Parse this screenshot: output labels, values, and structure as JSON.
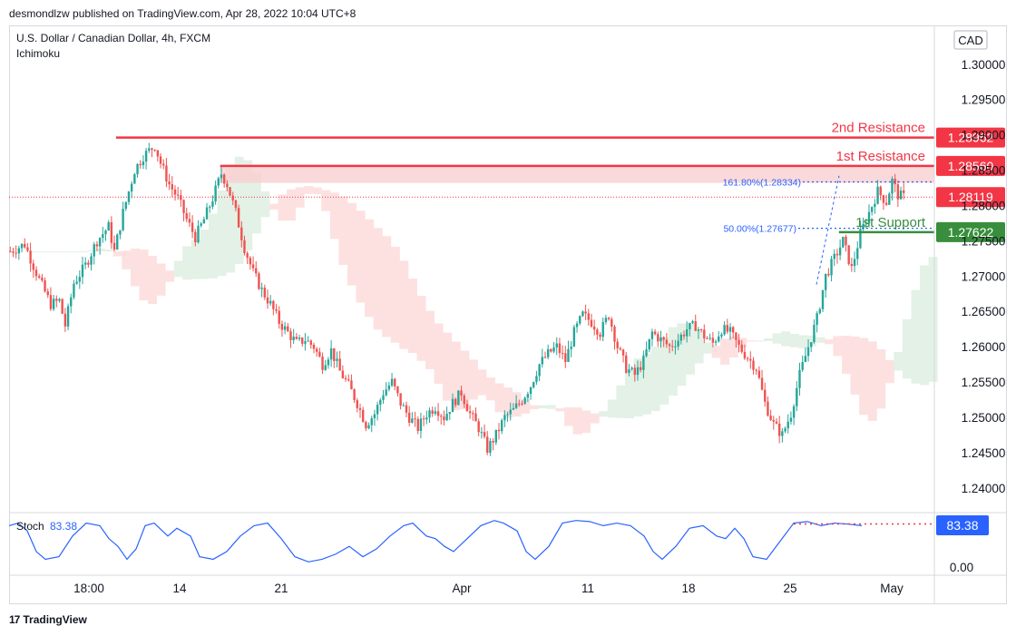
{
  "header": {
    "published": "desmondlzw published on TradingView.com, Apr 28, 2022 10:04 UTC+8"
  },
  "chart_data": {
    "type": "candlestick",
    "title": "U.S. Dollar / Canadian Dollar, 4h, FXCM",
    "indicator": "Ichimoku",
    "currency": "CAD",
    "ylim": [
      1.2365,
      1.3055
    ],
    "yticks": [
      "1.30000",
      "1.29500",
      "1.29000",
      "1.28500",
      "1.28000",
      "1.27500",
      "1.27000",
      "1.26500",
      "1.26000",
      "1.25500",
      "1.25000",
      "1.24500",
      "1.24000"
    ],
    "xticks": [
      "18:00",
      "14",
      "21",
      "Apr",
      "11",
      "18",
      "25",
      "May"
    ],
    "price_path": [
      [
        0,
        1.2735
      ],
      [
        5,
        1.2745
      ],
      [
        10,
        1.2695
      ],
      [
        14,
        1.266
      ],
      [
        17,
        1.2665
      ],
      [
        19,
        1.263
      ],
      [
        22,
        1.269
      ],
      [
        26,
        1.2715
      ],
      [
        30,
        1.275
      ],
      [
        34,
        1.277
      ],
      [
        36,
        1.2735
      ],
      [
        39,
        1.279
      ],
      [
        43,
        1.285
      ],
      [
        46,
        1.287
      ],
      [
        50,
        1.2885
      ],
      [
        52,
        1.286
      ],
      [
        55,
        1.283
      ],
      [
        58,
        1.281
      ],
      [
        61,
        1.278
      ],
      [
        64,
        1.2755
      ],
      [
        67,
        1.278
      ],
      [
        70,
        1.281
      ],
      [
        73,
        1.2845
      ],
      [
        75,
        1.283
      ],
      [
        78,
        1.279
      ],
      [
        81,
        1.274
      ],
      [
        84,
        1.2705
      ],
      [
        87,
        1.268
      ],
      [
        90,
        1.266
      ],
      [
        93,
        1.2635
      ],
      [
        96,
        1.262
      ],
      [
        99,
        1.2605
      ],
      [
        102,
        1.261
      ],
      [
        105,
        1.26
      ],
      [
        108,
        1.2575
      ],
      [
        111,
        1.2595
      ],
      [
        114,
        1.2565
      ],
      [
        117,
        1.2545
      ],
      [
        120,
        1.252
      ],
      [
        123,
        1.249
      ],
      [
        126,
        1.2505
      ],
      [
        129,
        1.2535
      ],
      [
        132,
        1.255
      ],
      [
        135,
        1.252
      ],
      [
        138,
        1.25
      ],
      [
        141,
        1.2485
      ],
      [
        144,
        1.2505
      ],
      [
        147,
        1.2515
      ],
      [
        150,
        1.25
      ],
      [
        153,
        1.252
      ],
      [
        156,
        1.2535
      ],
      [
        159,
        1.2505
      ],
      [
        162,
        1.2485
      ],
      [
        165,
        1.2455
      ],
      [
        168,
        1.2475
      ],
      [
        171,
        1.25
      ],
      [
        174,
        1.251
      ],
      [
        177,
        1.2525
      ],
      [
        180,
        1.2545
      ],
      [
        183,
        1.2575
      ],
      [
        186,
        1.259
      ],
      [
        189,
        1.26
      ],
      [
        192,
        1.258
      ],
      [
        195,
        1.262
      ],
      [
        198,
        1.2645
      ],
      [
        201,
        1.2635
      ],
      [
        204,
        1.262
      ],
      [
        207,
        1.2645
      ],
      [
        210,
        1.26
      ],
      [
        213,
        1.257
      ],
      [
        216,
        1.256
      ],
      [
        219,
        1.258
      ],
      [
        222,
        1.262
      ],
      [
        225,
        1.261
      ],
      [
        228,
        1.26
      ],
      [
        231,
        1.261
      ],
      [
        234,
        1.2625
      ],
      [
        237,
        1.263
      ],
      [
        240,
        1.2615
      ],
      [
        243,
        1.2605
      ],
      [
        246,
        1.2625
      ],
      [
        249,
        1.262
      ],
      [
        252,
        1.26
      ],
      [
        255,
        1.2585
      ],
      [
        258,
        1.257
      ],
      [
        261,
        1.252
      ],
      [
        264,
        1.249
      ],
      [
        267,
        1.2475
      ],
      [
        270,
        1.2505
      ],
      [
        273,
        1.256
      ],
      [
        276,
        1.26
      ],
      [
        279,
        1.264
      ],
      [
        282,
        1.27
      ],
      [
        285,
        1.2725
      ],
      [
        288,
        1.275
      ],
      [
        291,
        1.271
      ],
      [
        294,
        1.276
      ],
      [
        297,
        1.279
      ],
      [
        300,
        1.282
      ],
      [
        303,
        1.2805
      ],
      [
        305,
        1.2835
      ],
      [
        307,
        1.2815
      ],
      [
        309,
        1.2812
      ]
    ],
    "levels": [
      {
        "label": "2nd Resistance",
        "value": 1.28962,
        "tag": "1.28962",
        "color": "#f23645"
      },
      {
        "label": "1st Resistance",
        "value": 1.2856,
        "tag": "1.28560",
        "color": "#f23645"
      },
      {
        "label": "1st Support",
        "value": 1.27622,
        "tag": "1.27622",
        "color": "#388e3c"
      }
    ],
    "current_price": {
      "value": 1.28119,
      "tag": "1.28119",
      "color": "#f23645"
    },
    "fibonacci": [
      {
        "label": "161.80%(1.28334)",
        "value": 1.28334
      },
      {
        "label": "50.00%(1.27677)",
        "value": 1.27677
      }
    ],
    "stoch": {
      "label": "Stoch",
      "value": "83.38",
      "tick": "0.00",
      "line_color": "#2962ff"
    },
    "colors": {
      "up": "#26a69a",
      "down": "#ef5350",
      "cloud_bull": "#e3f1e6",
      "cloud_bear": "#fde1e1",
      "resistance_zone": "#f9cfd1"
    }
  },
  "footer": {
    "brand": "TradingView",
    "logo": "17"
  }
}
